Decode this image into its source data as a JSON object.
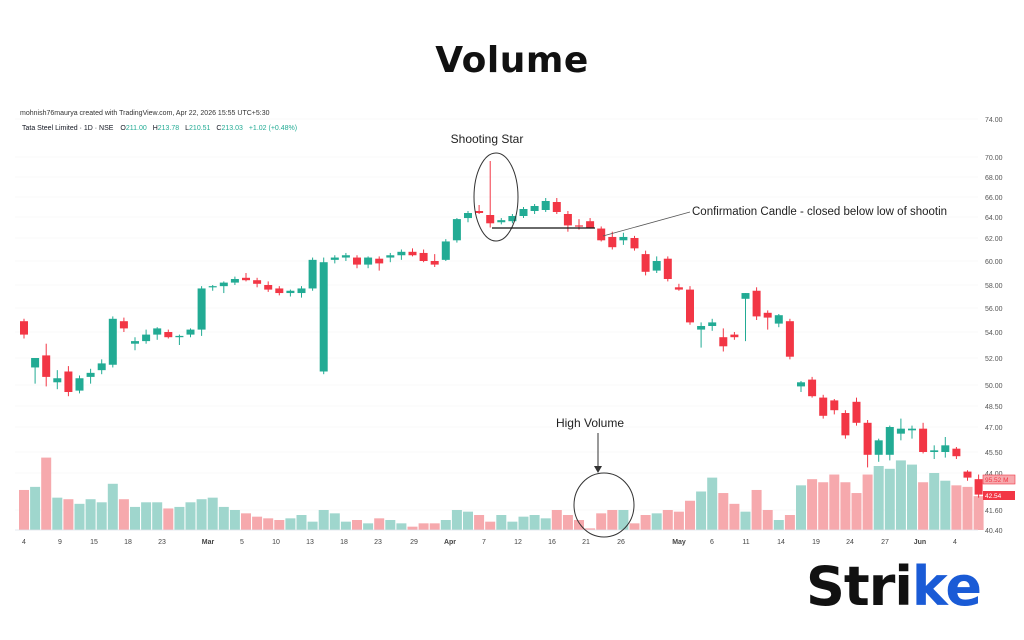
{
  "page": {
    "title": "Volume"
  },
  "chart_header": {
    "credit": "mohnish76maurya created with TradingView.com, Apr 22, 2026 15:55 UTC+5:30",
    "symbol_line": "Tata Steel Limited · 1D · NSE",
    "o_label": "O",
    "o_value": "211.00",
    "h_label": "H",
    "h_value": "213.78",
    "l_label": "L",
    "l_value": "210.51",
    "c_label": "C",
    "c_value": "213.03",
    "change": "+1.02 (+0.48%)"
  },
  "annotations": {
    "shooting_star": "Shooting Star",
    "confirmation": "Confirmation Candle -  closed below low of shootin",
    "high_volume": "High Volume"
  },
  "price_badges": {
    "upper": "95.52 M",
    "lower": "42.54"
  },
  "logo": {
    "text": "Stri",
    "accent": "ke"
  },
  "colors": {
    "up": "#22ab94",
    "down": "#f23645",
    "up_volume": "#9fd6cd",
    "down_volume": "#f6a9ad",
    "badge": "#f23645"
  },
  "chart_data": {
    "type": "candlestick",
    "y_axis_ticks": [
      "74.00",
      "70.00",
      "68.00",
      "66.00",
      "64.00",
      "62.00",
      "60.00",
      "58.00",
      "56.00",
      "54.00",
      "52.00",
      "50.00",
      "48.50",
      "47.00",
      "45.50",
      "44.00",
      "41.60",
      "40.40"
    ],
    "x_axis_ticks": [
      "4",
      "9",
      "15",
      "18",
      "23",
      "Mar",
      "5",
      "10",
      "13",
      "18",
      "23",
      "29",
      "Apr",
      "7",
      "12",
      "16",
      "21",
      "26",
      "May",
      "6",
      "11",
      "14",
      "19",
      "24",
      "27",
      "Jun",
      "4"
    ],
    "candles": [
      {
        "o": 54.9,
        "h": 55.1,
        "l": 53.5,
        "c": 53.8
      },
      {
        "o": 51.3,
        "h": 51.9,
        "l": 50.1,
        "c": 52.0
      },
      {
        "o": 52.2,
        "h": 53.1,
        "l": 49.9,
        "c": 50.6
      },
      {
        "o": 50.2,
        "h": 51.1,
        "l": 49.7,
        "c": 50.5
      },
      {
        "o": 51.0,
        "h": 51.4,
        "l": 49.2,
        "c": 49.5
      },
      {
        "o": 49.6,
        "h": 50.7,
        "l": 49.4,
        "c": 50.5
      },
      {
        "o": 50.6,
        "h": 51.2,
        "l": 50.1,
        "c": 50.9
      },
      {
        "o": 51.1,
        "h": 51.9,
        "l": 50.8,
        "c": 51.6
      },
      {
        "o": 51.5,
        "h": 55.3,
        "l": 51.3,
        "c": 55.1
      },
      {
        "o": 54.9,
        "h": 55.2,
        "l": 54.0,
        "c": 54.3
      },
      {
        "o": 53.1,
        "h": 53.6,
        "l": 52.6,
        "c": 53.3
      },
      {
        "o": 53.3,
        "h": 54.2,
        "l": 53.1,
        "c": 53.8
      },
      {
        "o": 53.8,
        "h": 54.4,
        "l": 53.4,
        "c": 54.3
      },
      {
        "o": 54.0,
        "h": 54.2,
        "l": 53.5,
        "c": 53.6
      },
      {
        "o": 53.6,
        "h": 53.8,
        "l": 53.0,
        "c": 53.7
      },
      {
        "o": 53.8,
        "h": 54.3,
        "l": 53.6,
        "c": 54.2
      },
      {
        "o": 54.2,
        "h": 57.9,
        "l": 53.7,
        "c": 57.7
      },
      {
        "o": 57.8,
        "h": 58.0,
        "l": 57.5,
        "c": 57.9
      },
      {
        "o": 57.9,
        "h": 58.3,
        "l": 57.3,
        "c": 58.2
      },
      {
        "o": 58.2,
        "h": 58.7,
        "l": 58.0,
        "c": 58.5
      },
      {
        "o": 58.6,
        "h": 59.0,
        "l": 58.3,
        "c": 58.4
      },
      {
        "o": 58.4,
        "h": 58.6,
        "l": 57.8,
        "c": 58.1
      },
      {
        "o": 58.0,
        "h": 58.3,
        "l": 57.4,
        "c": 57.6
      },
      {
        "o": 57.7,
        "h": 57.9,
        "l": 57.1,
        "c": 57.3
      },
      {
        "o": 57.3,
        "h": 57.6,
        "l": 57.0,
        "c": 57.5
      },
      {
        "o": 57.3,
        "h": 57.9,
        "l": 56.9,
        "c": 57.7
      },
      {
        "o": 57.7,
        "h": 60.3,
        "l": 57.5,
        "c": 60.1
      },
      {
        "o": 51.0,
        "h": 60.3,
        "l": 50.8,
        "c": 59.9
      },
      {
        "o": 60.1,
        "h": 60.5,
        "l": 59.8,
        "c": 60.3
      },
      {
        "o": 60.3,
        "h": 60.7,
        "l": 60.0,
        "c": 60.5
      },
      {
        "o": 60.3,
        "h": 60.5,
        "l": 59.4,
        "c": 59.7
      },
      {
        "o": 59.7,
        "h": 60.4,
        "l": 59.4,
        "c": 60.3
      },
      {
        "o": 60.2,
        "h": 60.4,
        "l": 59.2,
        "c": 59.8
      },
      {
        "o": 60.3,
        "h": 60.7,
        "l": 59.9,
        "c": 60.5
      },
      {
        "o": 60.5,
        "h": 61.0,
        "l": 60.1,
        "c": 60.8
      },
      {
        "o": 60.8,
        "h": 61.1,
        "l": 60.4,
        "c": 60.5
      },
      {
        "o": 60.7,
        "h": 61.0,
        "l": 59.9,
        "c": 60.0
      },
      {
        "o": 60.0,
        "h": 60.6,
        "l": 59.5,
        "c": 59.7
      },
      {
        "o": 60.1,
        "h": 61.9,
        "l": 60.0,
        "c": 61.7
      },
      {
        "o": 61.8,
        "h": 63.9,
        "l": 61.6,
        "c": 63.8
      },
      {
        "o": 63.9,
        "h": 64.6,
        "l": 63.5,
        "c": 64.4
      },
      {
        "o": 64.6,
        "h": 65.2,
        "l": 64.3,
        "c": 64.4
      },
      {
        "o": 64.2,
        "h": 69.6,
        "l": 63.0,
        "c": 63.4
      },
      {
        "o": 63.5,
        "h": 63.9,
        "l": 63.3,
        "c": 63.7
      },
      {
        "o": 63.6,
        "h": 64.3,
        "l": 63.4,
        "c": 64.1
      },
      {
        "o": 64.1,
        "h": 65.0,
        "l": 63.9,
        "c": 64.8
      },
      {
        "o": 64.6,
        "h": 65.3,
        "l": 64.3,
        "c": 65.1
      },
      {
        "o": 64.7,
        "h": 65.9,
        "l": 64.5,
        "c": 65.6
      },
      {
        "o": 65.5,
        "h": 65.9,
        "l": 64.3,
        "c": 64.5
      },
      {
        "o": 64.3,
        "h": 64.6,
        "l": 62.6,
        "c": 63.2
      },
      {
        "o": 63.2,
        "h": 63.8,
        "l": 62.8,
        "c": 63.1
      },
      {
        "o": 63.6,
        "h": 63.9,
        "l": 62.9,
        "c": 63.0
      },
      {
        "o": 62.9,
        "h": 63.1,
        "l": 61.7,
        "c": 61.8
      },
      {
        "o": 62.1,
        "h": 62.6,
        "l": 61.0,
        "c": 61.2
      },
      {
        "o": 61.8,
        "h": 62.5,
        "l": 61.4,
        "c": 62.1
      },
      {
        "o": 62.0,
        "h": 62.2,
        "l": 60.9,
        "c": 61.1
      },
      {
        "o": 60.6,
        "h": 60.9,
        "l": 58.8,
        "c": 59.1
      },
      {
        "o": 59.2,
        "h": 60.4,
        "l": 59.0,
        "c": 60.0
      },
      {
        "o": 60.2,
        "h": 60.4,
        "l": 58.3,
        "c": 58.5
      },
      {
        "o": 57.8,
        "h": 58.1,
        "l": 57.5,
        "c": 57.6
      },
      {
        "o": 57.6,
        "h": 57.9,
        "l": 54.6,
        "c": 54.8
      },
      {
        "o": 54.2,
        "h": 54.8,
        "l": 52.8,
        "c": 54.5
      },
      {
        "o": 54.5,
        "h": 55.1,
        "l": 54.1,
        "c": 54.8
      },
      {
        "o": 53.6,
        "h": 54.3,
        "l": 52.5,
        "c": 52.9
      },
      {
        "o": 53.8,
        "h": 54.0,
        "l": 53.4,
        "c": 53.6
      },
      {
        "o": 56.8,
        "h": 57.3,
        "l": 53.3,
        "c": 57.3
      },
      {
        "o": 57.5,
        "h": 57.8,
        "l": 55.0,
        "c": 55.3
      },
      {
        "o": 55.6,
        "h": 55.8,
        "l": 54.2,
        "c": 55.2
      },
      {
        "o": 54.7,
        "h": 55.5,
        "l": 54.4,
        "c": 55.4
      },
      {
        "o": 54.9,
        "h": 55.1,
        "l": 51.9,
        "c": 52.1
      },
      {
        "o": 49.9,
        "h": 50.3,
        "l": 49.5,
        "c": 50.2
      },
      {
        "o": 50.4,
        "h": 50.6,
        "l": 49.1,
        "c": 49.2
      },
      {
        "o": 49.1,
        "h": 49.3,
        "l": 47.6,
        "c": 47.8
      },
      {
        "o": 48.9,
        "h": 49.0,
        "l": 47.9,
        "c": 48.2
      },
      {
        "o": 48.0,
        "h": 48.2,
        "l": 46.3,
        "c": 46.5
      },
      {
        "o": 48.8,
        "h": 49.1,
        "l": 47.1,
        "c": 47.3
      },
      {
        "o": 47.3,
        "h": 47.5,
        "l": 44.4,
        "c": 45.3
      },
      {
        "o": 45.3,
        "h": 46.3,
        "l": 44.8,
        "c": 46.2
      },
      {
        "o": 45.3,
        "h": 47.1,
        "l": 44.9,
        "c": 47.0
      },
      {
        "o": 46.6,
        "h": 47.6,
        "l": 46.2,
        "c": 46.9
      },
      {
        "o": 46.8,
        "h": 47.1,
        "l": 46.3,
        "c": 46.9
      },
      {
        "o": 46.9,
        "h": 47.3,
        "l": 45.4,
        "c": 45.5
      },
      {
        "o": 45.5,
        "h": 45.9,
        "l": 45.0,
        "c": 45.6
      },
      {
        "o": 45.5,
        "h": 46.4,
        "l": 45.1,
        "c": 45.9
      },
      {
        "o": 45.7,
        "h": 45.8,
        "l": 45.0,
        "c": 45.2
      },
      {
        "o": 44.1,
        "h": 44.2,
        "l": 43.5,
        "c": 43.7
      },
      {
        "o": 43.6,
        "h": 43.9,
        "l": 42.4,
        "c": 42.6
      }
    ],
    "volume": [
      42.9,
      43.1,
      45.1,
      42.4,
      42.3,
      42.0,
      42.3,
      42.1,
      43.3,
      42.3,
      41.8,
      42.1,
      42.1,
      41.7,
      41.8,
      42.1,
      42.3,
      42.4,
      41.8,
      41.6,
      41.4,
      41.2,
      41.1,
      41.0,
      41.1,
      41.3,
      40.9,
      41.6,
      41.4,
      40.9,
      41.0,
      40.8,
      41.1,
      41.0,
      40.8,
      40.6,
      40.8,
      40.8,
      41.0,
      41.6,
      41.5,
      41.3,
      40.9,
      41.3,
      40.9,
      41.2,
      41.3,
      41.1,
      41.6,
      41.3,
      41.0,
      40.5,
      41.4,
      41.6,
      41.6,
      40.8,
      41.3,
      41.4,
      41.6,
      41.5,
      42.2,
      42.8,
      43.7,
      42.7,
      42.0,
      41.5,
      42.9,
      41.6,
      41.0,
      41.3,
      43.2,
      43.6,
      43.4,
      43.9,
      43.4,
      42.7,
      43.9,
      44.5,
      44.3,
      44.9,
      44.6,
      43.4,
      44.0,
      43.5,
      43.2,
      43.1,
      42.5
    ]
  }
}
